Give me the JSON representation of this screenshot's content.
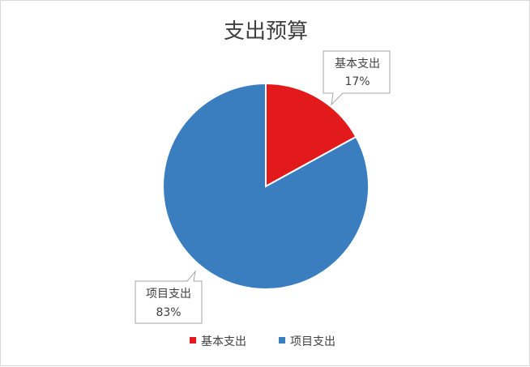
{
  "chart_data": {
    "type": "pie",
    "title": "支出预算",
    "categories": [
      "基本支出",
      "项目支出"
    ],
    "values": [
      17,
      83
    ],
    "data_labels": [
      "17%",
      "83%"
    ],
    "colors": [
      "#e31a1c",
      "#3a7ebf"
    ],
    "legend": {
      "position": "bottom",
      "entries": [
        "基本支出",
        "项目支出"
      ]
    },
    "start_angle_deg": 0,
    "direction": "clockwise"
  }
}
